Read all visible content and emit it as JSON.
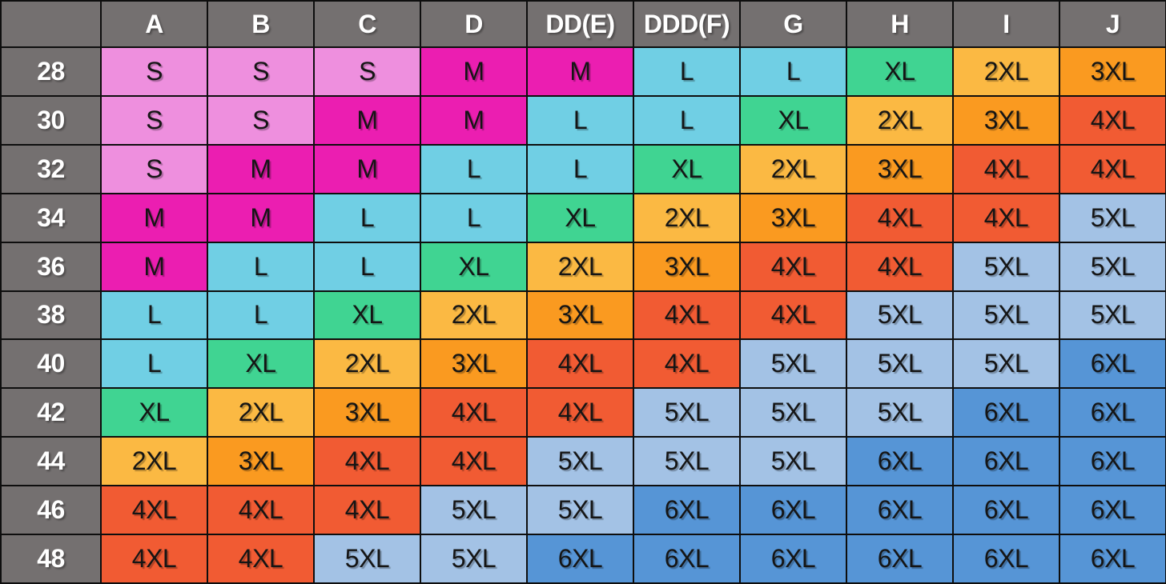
{
  "colors": {
    "header_bg": "#747070",
    "border": "#0e0e0e",
    "header_text": "#ffffff",
    "cell_text": "#151515",
    "sizes": {
      "S": "#EE8FDE",
      "M": "#EB1EB1",
      "L": "#70CFE4",
      "XL": "#40D492",
      "2XL": "#FBB943",
      "3XL": "#FA9A20",
      "4XL": "#F15B33",
      "5XL": "#A3C2E5",
      "6XL": "#5695D6"
    }
  },
  "chart_data": {
    "type": "table",
    "corner_label": "",
    "columns": [
      "A",
      "B",
      "C",
      "D",
      "DD(E)",
      "DDD(F)",
      "G",
      "H",
      "I",
      "J"
    ],
    "row_labels": [
      "28",
      "30",
      "32",
      "34",
      "36",
      "38",
      "40",
      "42",
      "44",
      "46",
      "48"
    ],
    "rows": [
      [
        "S",
        "S",
        "S",
        "M",
        "M",
        "L",
        "L",
        "XL",
        "2XL",
        "3XL"
      ],
      [
        "S",
        "S",
        "M",
        "M",
        "L",
        "L",
        "XL",
        "2XL",
        "3XL",
        "4XL"
      ],
      [
        "S",
        "M",
        "M",
        "L",
        "L",
        "XL",
        "2XL",
        "3XL",
        "4XL",
        "4XL"
      ],
      [
        "M",
        "M",
        "L",
        "L",
        "XL",
        "2XL",
        "3XL",
        "4XL",
        "4XL",
        "5XL"
      ],
      [
        "M",
        "L",
        "L",
        "XL",
        "2XL",
        "3XL",
        "4XL",
        "4XL",
        "5XL",
        "5XL"
      ],
      [
        "L",
        "L",
        "XL",
        "2XL",
        "3XL",
        "4XL",
        "4XL",
        "5XL",
        "5XL",
        "5XL"
      ],
      [
        "L",
        "XL",
        "2XL",
        "3XL",
        "4XL",
        "4XL",
        "5XL",
        "5XL",
        "5XL",
        "6XL"
      ],
      [
        "XL",
        "2XL",
        "3XL",
        "4XL",
        "4XL",
        "5XL",
        "5XL",
        "5XL",
        "6XL",
        "6XL"
      ],
      [
        "2XL",
        "3XL",
        "4XL",
        "4XL",
        "5XL",
        "5XL",
        "5XL",
        "6XL",
        "6XL",
        "6XL"
      ],
      [
        "4XL",
        "4XL",
        "4XL",
        "5XL",
        "5XL",
        "6XL",
        "6XL",
        "6XL",
        "6XL",
        "6XL"
      ],
      [
        "4XL",
        "4XL",
        "5XL",
        "5XL",
        "6XL",
        "6XL",
        "6XL",
        "6XL",
        "6XL",
        "6XL"
      ]
    ]
  }
}
